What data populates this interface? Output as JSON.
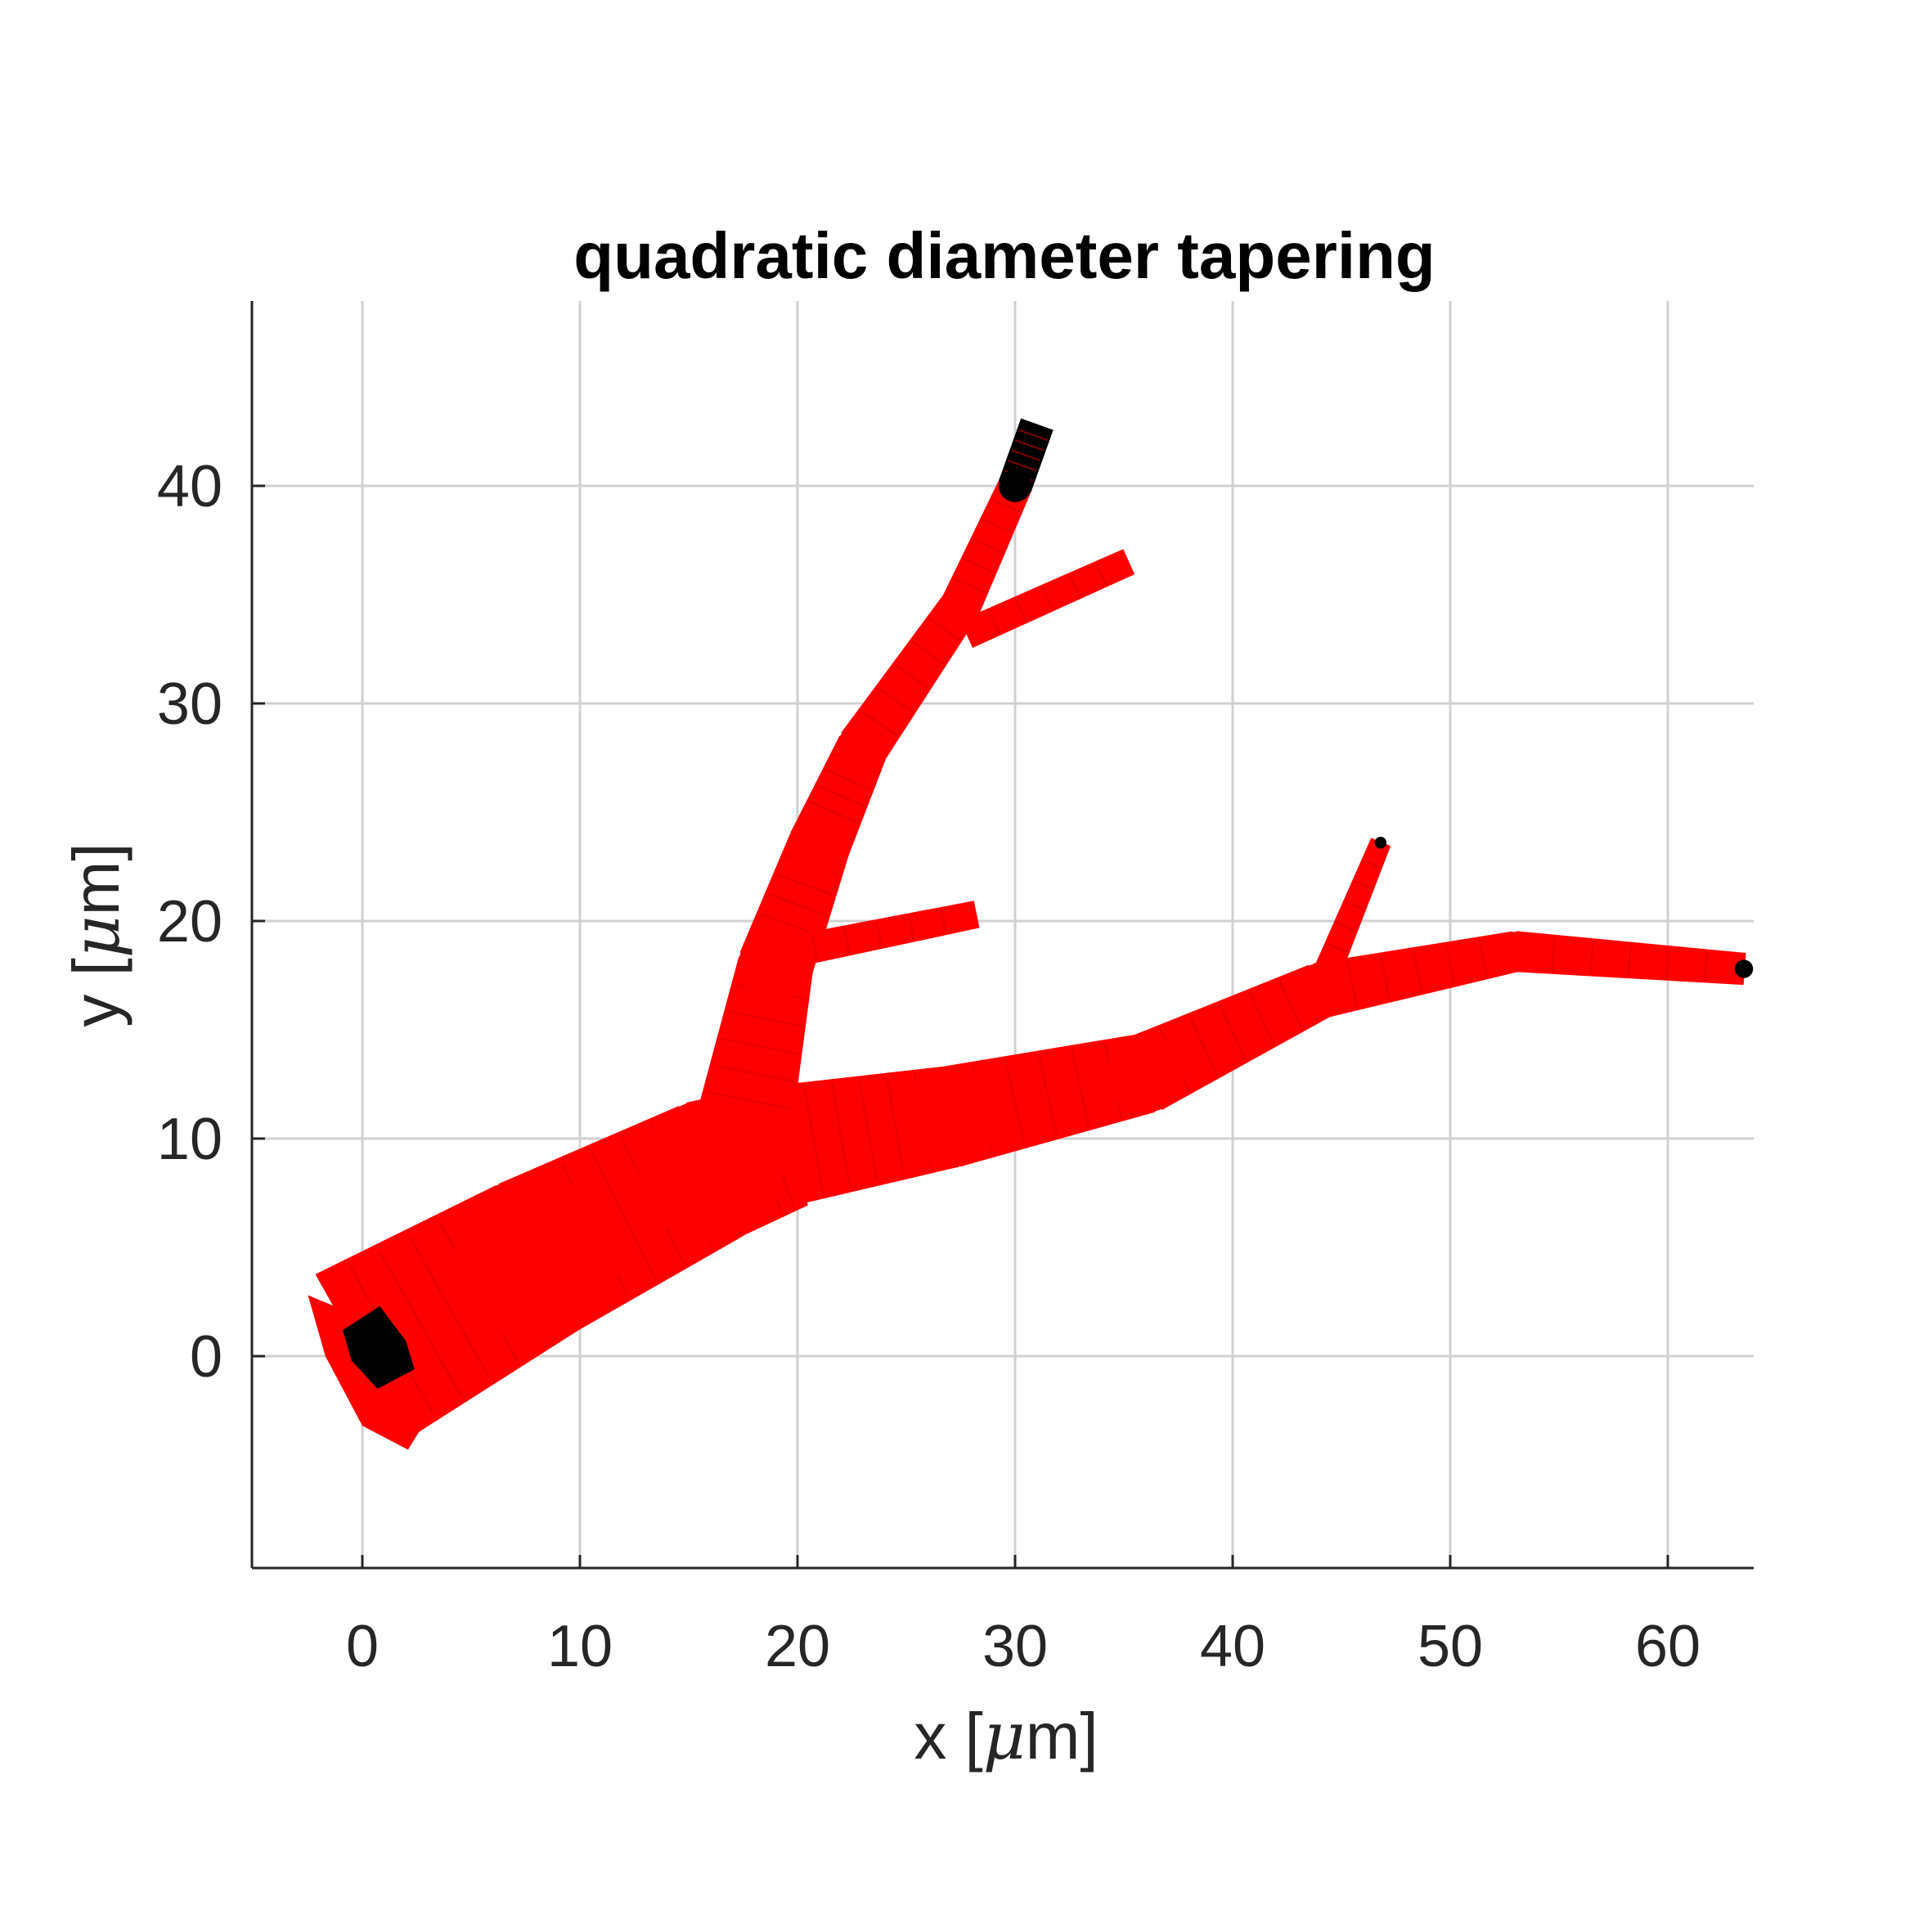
{
  "chart_data": {
    "type": "tree-morphology",
    "title": "quadratic diameter tapering",
    "xlabel": {
      "prefix": "x [",
      "mu": "μ",
      "suffix": "m]"
    },
    "ylabel": {
      "prefix": "y [",
      "mu": "μ",
      "suffix": "m]"
    },
    "xlim": [
      -5,
      64
    ],
    "ylim": [
      -9.5,
      48.5
    ],
    "xticks": [
      0,
      10,
      20,
      30,
      40,
      50,
      60
    ],
    "yticks": [
      0,
      10,
      20,
      30,
      40
    ],
    "grid": true,
    "colors": {
      "segment": "#ff0000",
      "edge": "#000000",
      "grid": "#d0d0d0",
      "axis": "#262626"
    },
    "branches": [
      {
        "name": "trunk",
        "points": [
          [
            0,
            0
          ],
          [
            8,
            4.5
          ],
          [
            16,
            8.5
          ],
          [
            19.5,
            9.7
          ]
        ],
        "diameters": [
          8.6,
          7.6,
          6.6,
          5.8
        ],
        "end_cap": "root"
      },
      {
        "name": "main-right",
        "points": [
          [
            19.5,
            9.7
          ],
          [
            27,
            11
          ],
          [
            36,
            13
          ],
          [
            44,
            16.8
          ],
          [
            53,
            18.6
          ],
          [
            63.5,
            17.8
          ]
        ],
        "diameters": [
          5.5,
          4.6,
          3.6,
          2.5,
          1.8,
          1.4
        ],
        "end_cap": "dark"
      },
      {
        "name": "ascending",
        "points": [
          [
            17.5,
            10.5
          ],
          [
            19,
            18
          ],
          [
            21,
            23.5
          ],
          [
            23,
            28
          ],
          [
            27.5,
            34.5
          ],
          [
            30,
            40
          ],
          [
            31,
            42.8
          ]
        ],
        "diameters": [
          4.4,
          3.4,
          2.8,
          2.3,
          1.8,
          1.5,
          1.5
        ],
        "end_cap": "dark-tip",
        "dark_from": 40
      },
      {
        "name": "side-20",
        "points": [
          [
            19.3,
            18.5
          ],
          [
            28.2,
            20.3
          ]
        ],
        "diameters": [
          1.4,
          1.2
        ],
        "end_cap": "none"
      },
      {
        "name": "side-35",
        "points": [
          [
            27.8,
            33.2
          ],
          [
            35.2,
            36.5
          ]
        ],
        "diameters": [
          1.3,
          1.2
        ],
        "end_cap": "none"
      },
      {
        "name": "side-46",
        "points": [
          [
            44.4,
            17.8
          ],
          [
            46.8,
            23.6
          ]
        ],
        "diameters": [
          1.2,
          0.9
        ],
        "end_cap": "dark"
      }
    ]
  }
}
